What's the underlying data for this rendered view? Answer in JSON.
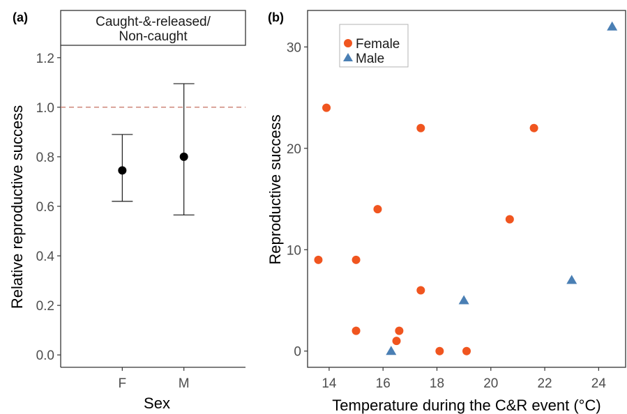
{
  "chart_data": [
    {
      "panel_label": "(a)",
      "type": "scatter",
      "strip": [
        "Caught-&-released/",
        "Non-caught"
      ],
      "xlabel": "Sex",
      "ylabel": "Relative reproductive success",
      "categories": [
        "F",
        "M"
      ],
      "ylim": [
        -0.05,
        1.25
      ],
      "yticks": [
        0.0,
        0.2,
        0.4,
        0.6,
        0.8,
        1.0,
        1.2
      ],
      "yticklabels": [
        "0.0",
        "0.2",
        "0.4",
        "0.6",
        "0.8",
        "1.0",
        "1.2"
      ],
      "points": [
        {
          "category": "F",
          "value": 0.745,
          "lower": 0.62,
          "upper": 0.89
        },
        {
          "category": "M",
          "value": 0.8,
          "lower": 0.565,
          "upper": 1.095
        }
      ],
      "reference_line": {
        "y": 1.0,
        "style": "dashed",
        "color": "#c97b6e"
      },
      "grid": false
    },
    {
      "panel_label": "(b)",
      "type": "scatter",
      "xlabel": "Temperature during the C&R event (°C)",
      "ylabel": "Reproductive success",
      "xlim": [
        13.2,
        25.0
      ],
      "ylim": [
        -1.6,
        33.6
      ],
      "xticks": [
        14,
        16,
        18,
        20,
        22,
        24
      ],
      "xticklabels": [
        "14",
        "16",
        "18",
        "20",
        "22",
        "24"
      ],
      "yticks": [
        0,
        10,
        20,
        30
      ],
      "yticklabels": [
        "0",
        "10",
        "20",
        "30"
      ],
      "grid": false,
      "legend": {
        "position": "top-left"
      },
      "series": [
        {
          "name": "Female",
          "color": "#f0551f",
          "marker": "circle",
          "points": [
            {
              "x": 13.6,
              "y": 9
            },
            {
              "x": 13.9,
              "y": 24
            },
            {
              "x": 15.0,
              "y": 9
            },
            {
              "x": 15.0,
              "y": 2
            },
            {
              "x": 15.8,
              "y": 14
            },
            {
              "x": 16.5,
              "y": 1
            },
            {
              "x": 16.6,
              "y": 2
            },
            {
              "x": 17.4,
              "y": 22
            },
            {
              "x": 17.4,
              "y": 6
            },
            {
              "x": 18.1,
              "y": 0
            },
            {
              "x": 19.1,
              "y": 0
            },
            {
              "x": 20.7,
              "y": 13
            },
            {
              "x": 21.6,
              "y": 22
            }
          ]
        },
        {
          "name": "Male",
          "color": "#4a7fb4",
          "marker": "triangle",
          "points": [
            {
              "x": 16.3,
              "y": 0
            },
            {
              "x": 19.0,
              "y": 5
            },
            {
              "x": 23.0,
              "y": 7
            },
            {
              "x": 24.5,
              "y": 32
            }
          ]
        }
      ]
    }
  ]
}
